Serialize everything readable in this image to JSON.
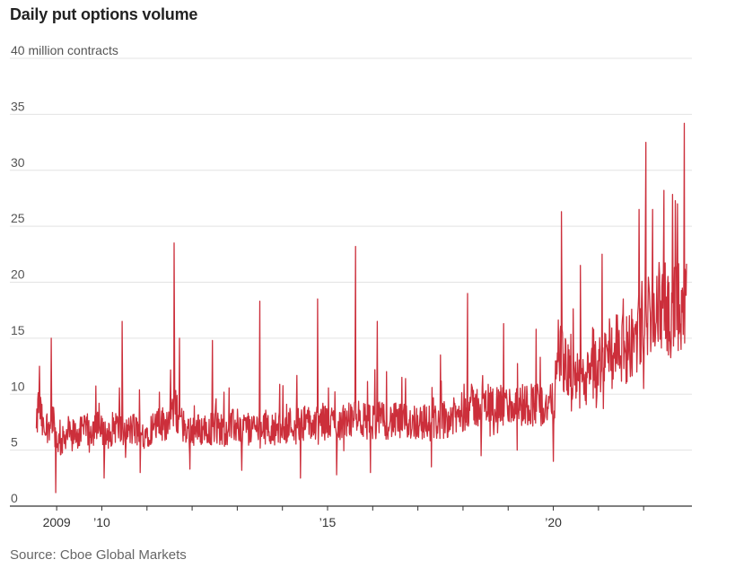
{
  "chart_data": {
    "type": "line",
    "title": "Daily put options volume",
    "unit_label": "40 million contracts",
    "source": "Source: Cboe Global Markets",
    "ylim": [
      0,
      40
    ],
    "yticks": [
      0,
      5,
      10,
      15,
      20,
      25,
      30,
      35,
      40
    ],
    "ytick_labels": [
      "0",
      "5",
      "10",
      "15",
      "20",
      "25",
      "30",
      "35",
      "40 million contracts"
    ],
    "xlim": [
      2008.5,
      2023.05
    ],
    "xticks": [
      2009,
      2010,
      2015,
      2020
    ],
    "xtick_labels": [
      "2009",
      "’10",
      "’15",
      "’20"
    ],
    "grid": true,
    "line_color": "#cc2f3b",
    "series": [
      {
        "x": [
          2008.55,
          2008.6,
          2008.7,
          2008.8,
          2008.9,
          2009.0,
          2009.1,
          2009.2,
          2009.3,
          2009.5,
          2009.7,
          2009.9,
          2010.1,
          2010.3,
          2010.5,
          2010.7,
          2010.9,
          2011.1,
          2011.3,
          2011.5,
          2011.6,
          2011.7,
          2011.8,
          2011.9,
          2012.1,
          2012.4,
          2012.7,
          2013.0,
          2013.3,
          2013.6,
          2013.9,
          2014.2,
          2014.5,
          2014.7,
          2014.9,
          2015.2,
          2015.5,
          2015.7,
          2015.9,
          2016.1,
          2016.4,
          2016.7,
          2017.0,
          2017.3,
          2017.6,
          2017.9,
          2018.1,
          2018.3,
          2018.6,
          2018.9,
          2019.2,
          2019.5,
          2019.8,
          2020.0,
          2020.15,
          2020.25,
          2020.4,
          2020.6,
          2020.8,
          2021.0,
          2021.2,
          2021.4,
          2021.6,
          2021.8,
          2022.0,
          2022.2,
          2022.4,
          2022.6,
          2022.8,
          2022.95
        ],
        "y": [
          6.5,
          9.5,
          6.8,
          7.2,
          8.0,
          6.0,
          5.5,
          6.5,
          6.4,
          6.5,
          6.8,
          7.0,
          6.3,
          7.2,
          6.5,
          6.9,
          6.4,
          7.0,
          7.3,
          7.6,
          9.0,
          7.8,
          7.2,
          6.9,
          6.8,
          7.0,
          6.9,
          7.2,
          7.0,
          7.1,
          6.9,
          7.4,
          7.5,
          7.2,
          7.6,
          7.4,
          7.6,
          7.8,
          7.5,
          7.7,
          7.6,
          7.5,
          7.6,
          7.4,
          7.8,
          8.0,
          9.0,
          8.9,
          9.2,
          8.8,
          9.0,
          9.2,
          8.9,
          9.0,
          14.0,
          12.5,
          11.5,
          11.0,
          11.5,
          12.5,
          13.5,
          14.5,
          14.0,
          15.0,
          17.0,
          17.5,
          18.0,
          17.5,
          17.8,
          19.0
        ],
        "spikes": [
          {
            "x": 2008.62,
            "y": 12.5
          },
          {
            "x": 2008.88,
            "y": 15.0
          },
          {
            "x": 2008.98,
            "y": 1.2
          },
          {
            "x": 2010.05,
            "y": 2.5
          },
          {
            "x": 2010.45,
            "y": 16.5
          },
          {
            "x": 2010.85,
            "y": 3.0
          },
          {
            "x": 2011.6,
            "y": 23.5
          },
          {
            "x": 2011.72,
            "y": 15.0
          },
          {
            "x": 2011.95,
            "y": 3.3
          },
          {
            "x": 2012.45,
            "y": 14.8
          },
          {
            "x": 2013.5,
            "y": 18.3
          },
          {
            "x": 2013.1,
            "y": 3.2
          },
          {
            "x": 2014.4,
            "y": 2.5
          },
          {
            "x": 2014.78,
            "y": 18.5
          },
          {
            "x": 2015.2,
            "y": 2.8
          },
          {
            "x": 2015.62,
            "y": 23.2
          },
          {
            "x": 2015.95,
            "y": 3.0
          },
          {
            "x": 2016.1,
            "y": 16.5
          },
          {
            "x": 2017.3,
            "y": 3.5
          },
          {
            "x": 2017.5,
            "y": 13.5
          },
          {
            "x": 2018.1,
            "y": 19.0
          },
          {
            "x": 2018.4,
            "y": 4.5
          },
          {
            "x": 2018.9,
            "y": 16.3
          },
          {
            "x": 2019.2,
            "y": 5.0
          },
          {
            "x": 2019.62,
            "y": 15.8
          },
          {
            "x": 2020.0,
            "y": 4.0
          },
          {
            "x": 2020.18,
            "y": 26.3
          },
          {
            "x": 2020.4,
            "y": 8.5
          },
          {
            "x": 2020.6,
            "y": 21.5
          },
          {
            "x": 2020.95,
            "y": 8.8
          },
          {
            "x": 2021.08,
            "y": 22.5
          },
          {
            "x": 2021.3,
            "y": 10.5
          },
          {
            "x": 2021.55,
            "y": 18.5
          },
          {
            "x": 2021.9,
            "y": 26.5
          },
          {
            "x": 2022.0,
            "y": 10.5
          },
          {
            "x": 2022.05,
            "y": 32.5
          },
          {
            "x": 2022.2,
            "y": 26.5
          },
          {
            "x": 2022.45,
            "y": 28.2
          },
          {
            "x": 2022.55,
            "y": 13.5
          },
          {
            "x": 2022.75,
            "y": 27.0
          },
          {
            "x": 2022.83,
            "y": 14.0
          },
          {
            "x": 2022.9,
            "y": 34.2
          }
        ]
      }
    ]
  }
}
